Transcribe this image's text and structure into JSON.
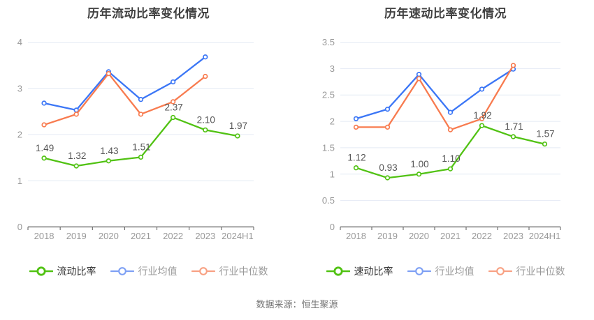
{
  "page": {
    "source_note": "数据来源：恒生聚源"
  },
  "colors": {
    "background": "#FFFFFF",
    "grid": "#E4EAF4",
    "axis": "#5A5A5A",
    "tick_label": "#999999",
    "data_label": "#555555",
    "title": "#404040",
    "source": "#757575",
    "green": "#51C213",
    "blue": "#3B76F6",
    "orange": "#F87B4F"
  },
  "chart_data": [
    {
      "type": "line",
      "title": "历年流动比率变化情况",
      "categories": [
        "2018",
        "2019",
        "2020",
        "2021",
        "2022",
        "2023",
        "2024H1"
      ],
      "ylim": [
        0,
        4
      ],
      "ystep": 1,
      "ytick_labels": [
        "0",
        "1",
        "2",
        "3",
        "4"
      ],
      "grid": true,
      "legend_position": "bottom",
      "series": [
        {
          "name": "流动比率",
          "color": "#51C213",
          "legend_icon_color": "#51C213",
          "legend_text_color": "#333333",
          "show_labels": true,
          "values": [
            1.49,
            1.32,
            1.43,
            1.51,
            2.37,
            2.1,
            1.97
          ],
          "labels": [
            "1.49",
            "1.32",
            "1.43",
            "1.51",
            "2.37",
            "2.10",
            "1.97"
          ]
        },
        {
          "name": "行业均值",
          "color": "#3B76F6",
          "legend_icon_color": "#7EA0F4",
          "legend_text_color": "#999999",
          "show_labels": false,
          "values": [
            2.68,
            2.53,
            3.36,
            2.76,
            3.14,
            3.68
          ]
        },
        {
          "name": "行业中位数",
          "color": "#F87B4F",
          "legend_icon_color": "#F8A183",
          "legend_text_color": "#999999",
          "show_labels": false,
          "values": [
            2.21,
            2.44,
            3.32,
            2.44,
            2.71,
            3.26
          ]
        }
      ]
    },
    {
      "type": "line",
      "title": "历年速动比率变化情况",
      "categories": [
        "2018",
        "2019",
        "2020",
        "2021",
        "2022",
        "2023",
        "2024H1"
      ],
      "ylim": [
        0,
        3.5
      ],
      "ystep": 0.5,
      "ytick_labels": [
        "0",
        "0.5",
        "1",
        "1.5",
        "2",
        "2.5",
        "3",
        "3.5"
      ],
      "grid": true,
      "legend_position": "bottom",
      "series": [
        {
          "name": "速动比率",
          "color": "#51C213",
          "legend_icon_color": "#51C213",
          "legend_text_color": "#333333",
          "show_labels": true,
          "values": [
            1.12,
            0.93,
            1.0,
            1.1,
            1.92,
            1.71,
            1.57
          ],
          "labels": [
            "1.12",
            "0.93",
            "1.00",
            "1.10",
            "1.92",
            "1.71",
            "1.57"
          ]
        },
        {
          "name": "行业均值",
          "color": "#3B76F6",
          "legend_icon_color": "#7EA0F4",
          "legend_text_color": "#999999",
          "show_labels": false,
          "values": [
            2.05,
            2.23,
            2.89,
            2.17,
            2.61,
            2.99
          ]
        },
        {
          "name": "行业中位数",
          "color": "#F87B4F",
          "legend_icon_color": "#F8A183",
          "legend_text_color": "#999999",
          "show_labels": false,
          "values": [
            1.89,
            1.89,
            2.81,
            1.84,
            2.05,
            3.06
          ]
        }
      ]
    }
  ]
}
